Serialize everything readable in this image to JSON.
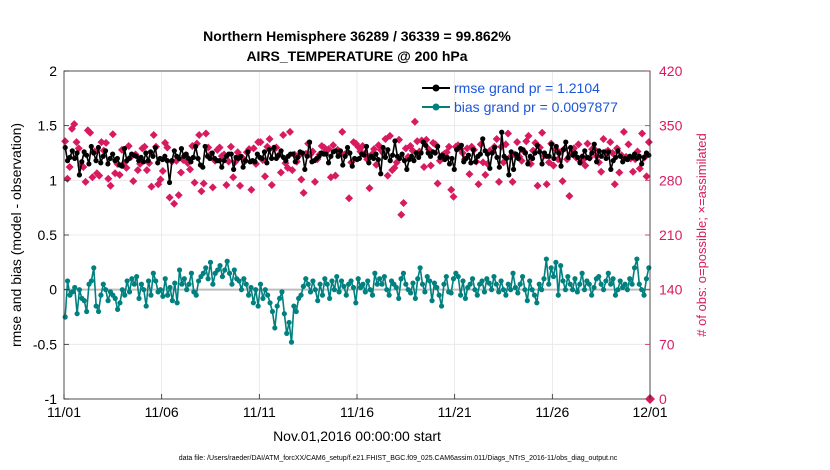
{
  "chart_data": {
    "type": "line",
    "title_line1": "Northern Hemisphere 36289 / 36339 = 99.862%",
    "title_line2": "AIRS_TEMPERATURE @ 200 hPa",
    "xlabel": "Nov.01,2016 00:00:00 start",
    "ylabel": "rmse and bias (model - observation)",
    "ylabel_right": "# of obs: o=possible; ×=assimilated",
    "xlim": [
      0,
      30
    ],
    "ylim": [
      -1,
      2
    ],
    "ylim_right": [
      0,
      420
    ],
    "x_ticks": [
      0,
      5,
      10,
      15,
      20,
      25,
      30
    ],
    "x_tick_labels": [
      "11/01",
      "11/06",
      "11/11",
      "11/16",
      "11/21",
      "11/26",
      "12/01"
    ],
    "y_ticks": [
      -1,
      -0.5,
      0,
      0.5,
      1,
      1.5,
      2
    ],
    "y_tick_labels": [
      "-1",
      "-0.5",
      "0",
      "0.5",
      "1",
      "1.5",
      "2"
    ],
    "y_ticks_right": [
      0,
      70,
      140,
      210,
      280,
      350,
      420
    ],
    "y_tick_labels_right": [
      "0",
      "70",
      "140",
      "210",
      "280",
      "350",
      "420"
    ],
    "grid": true,
    "legend_position": "top-right",
    "series": [
      {
        "name": "rmse grand pr = 1.2104",
        "color": "#000000",
        "y_axis": "left",
        "values": [
          1.3,
          1.18,
          1.21,
          1.27,
          1.2,
          1.25,
          1.05,
          1.17,
          1.26,
          1.23,
          1.15,
          1.31,
          1.25,
          1.18,
          1.3,
          1.16,
          1.22,
          1.27,
          1.15,
          1.2,
          1.24,
          1.18,
          1.2,
          1.14,
          1.13,
          1.29,
          1.18,
          1.2,
          1.24,
          1.23,
          1.22,
          1.18,
          1.21,
          1.17,
          1.25,
          1.18,
          1.26,
          1.22,
          1.3,
          1.16,
          1.2,
          1.19,
          1.22,
          1.18,
          0.98,
          1.18,
          1.27,
          1.22,
          1.2,
          1.29,
          1.22,
          1.24,
          1.2,
          1.17,
          1.21,
          1.31,
          1.2,
          1.14,
          1.12,
          1.31,
          1.22,
          1.2,
          1.25,
          1.2,
          1.18,
          1.18,
          1.12,
          1.18,
          1.22,
          1.24,
          1.24,
          1.1,
          1.21,
          1.2,
          1.22,
          1.12,
          1.18,
          1.26,
          1.17,
          1.18,
          1.17,
          1.24,
          1.21,
          1.2,
          1.26,
          1.16,
          1.28,
          1.2,
          1.3,
          1.2,
          1.23,
          1.27,
          1.21,
          1.18,
          1.22,
          1.24,
          1.24,
          1.17,
          1.21,
          1.26,
          1.25,
          1.1,
          1.22,
          1.35,
          1.17,
          1.18,
          1.2,
          1.22,
          1.25,
          1.24,
          1.24,
          1.16,
          1.22,
          1.26,
          1.27,
          1.22,
          1.27,
          1.14,
          1.22,
          1.3,
          1.25,
          1.13,
          1.2,
          1.19,
          1.2,
          1.24,
          1.23,
          1.31,
          1.16,
          1.22,
          1.2,
          1.24,
          1.19,
          1.06,
          1.3,
          1.21,
          1.28,
          1.18,
          1.23,
          1.36,
          1.22,
          1.2,
          1.24,
          1.18,
          1.1,
          1.19,
          1.22,
          1.18,
          1.25,
          1.21,
          1.25,
          1.35,
          1.32,
          1.25,
          1.22,
          1.26,
          1.25,
          1.31,
          1.21,
          1.23,
          1.19,
          1.21,
          1.15,
          1.2,
          1.1,
          1.28,
          1.3,
          1.32,
          1.17,
          1.2,
          1.23,
          1.16,
          1.28,
          1.17,
          1.22,
          1.24,
          1.38,
          1.27,
          1.24,
          1.11,
          1.25,
          1.3,
          1.21,
          1.12,
          1.44,
          1.22,
          1.2,
          1.05,
          1.26,
          1.1,
          1.24,
          1.2,
          1.29,
          1.28,
          1.25,
          1.15,
          1.22,
          1.2,
          1.25,
          1.32,
          1.26,
          1.15,
          1.25,
          1.22,
          1.22,
          1.33,
          1.2,
          1.31,
          1.25,
          1.13,
          1.28,
          1.35,
          1.21,
          1.3,
          1.23,
          1.25,
          1.21,
          1.16,
          1.22,
          1.27,
          1.21,
          1.2,
          1.25,
          1.33,
          1.17,
          1.27,
          1.22,
          1.26,
          1.2,
          1.26,
          1.1,
          1.18,
          1.21,
          1.27,
          1.22,
          1.17,
          1.2,
          1.19,
          1.22,
          1.21,
          1.24,
          1.2,
          1.22,
          1.15,
          1.21,
          1.25,
          1.23
        ]
      },
      {
        "name": "bias grand pr = 0.0097877",
        "color": "#00807f",
        "y_axis": "left",
        "values": [
          -0.25,
          0.08,
          -0.05,
          -0.02,
          0.02,
          -0.22,
          0.0,
          -0.08,
          -0.1,
          -0.2,
          0.05,
          0.08,
          0.2,
          -0.15,
          -0.2,
          -0.05,
          0.05,
          0.0,
          -0.1,
          -0.02,
          -0.05,
          -0.08,
          -0.18,
          -0.12,
          0.0,
          -0.05,
          0.08,
          -0.02,
          0.1,
          0.05,
          0.12,
          -0.08,
          0.05,
          0.0,
          -0.15,
          0.08,
          -0.05,
          0.15,
          0.08,
          -0.02,
          0.0,
          -0.06,
          0.1,
          -0.05,
          0.02,
          -0.1,
          0.06,
          -0.12,
          0.18,
          0.05,
          0.1,
          0.0,
          0.05,
          0.15,
          -0.02,
          -0.05,
          0.08,
          0.12,
          0.15,
          0.2,
          0.1,
          0.25,
          0.05,
          0.15,
          0.18,
          0.22,
          0.12,
          0.18,
          0.26,
          0.15,
          0.05,
          0.18,
          0.1,
          0.08,
          0.0,
          0.1,
          0.05,
          -0.05,
          0.02,
          -0.12,
          0.0,
          -0.15,
          0.05,
          -0.08,
          0.0,
          -0.05,
          -0.12,
          -0.2,
          -0.35,
          -0.15,
          -0.08,
          -0.02,
          -0.22,
          -0.4,
          -0.3,
          -0.48,
          -0.15,
          -0.2,
          -0.08,
          -0.05,
          0.03,
          0.1,
          0.05,
          -0.02,
          0.08,
          0.0,
          -0.1,
          0.05,
          -0.05,
          0.1,
          0.05,
          -0.08,
          0.08,
          0.0,
          0.12,
          -0.02,
          0.08,
          0.03,
          -0.05,
          0.05,
          0.08,
          0.02,
          -0.12,
          0.1,
          0.02,
          0.05,
          -0.02,
          0.08,
          0.0,
          -0.05,
          0.15,
          0.05,
          0.1,
          0.05,
          0.12,
          0.0,
          -0.05,
          0.08,
          0.05,
          0.02,
          -0.08,
          0.1,
          0.15,
          0.05,
          0.0,
          -0.03,
          0.06,
          -0.08,
          0.1,
          0.2,
          0.05,
          -0.02,
          0.12,
          0.08,
          -0.1,
          0.06,
          0.02,
          -0.05,
          -0.15,
          0.05,
          0.12,
          -0.02,
          -0.03,
          0.1,
          0.15,
          0.12,
          -0.05,
          0.08,
          -0.08,
          0.02,
          0.05,
          0.1,
          0.0,
          -0.05,
          0.05,
          0.08,
          -0.02,
          0.1,
          0.06,
          0.0,
          0.12,
          0.05,
          -0.02,
          0.08,
          0.0,
          -0.05,
          0.05,
          0.0,
          0.15,
          0.02,
          -0.03,
          0.05,
          0.12,
          0.0,
          -0.1,
          0.08,
          0.0,
          -0.05,
          -0.12,
          0.05,
          0.0,
          0.1,
          0.28,
          0.05,
          0.2,
          0.12,
          0.25,
          -0.05,
          0.22,
          0.08,
          0.0,
          0.12,
          0.05,
          0.0,
          0.1,
          -0.02,
          0.05,
          0.15,
          0.0,
          0.08,
          0.05,
          -0.05,
          0.02,
          0.1,
          0.12,
          0.05,
          0.0,
          0.08,
          0.15,
          0.05,
          0.1,
          -0.05,
          0.0,
          0.08,
          0.02,
          0.05,
          0.0,
          0.1,
          0.05,
          0.2,
          0.28,
          0.05,
          0.0,
          -0.05,
          0.1,
          0.2
        ]
      }
    ],
    "obs_possible_values": [
      330,
      282,
      297,
      346,
      352,
      329,
      321,
      299,
      297,
      278,
      344,
      341,
      284,
      317,
      289,
      286,
      329,
      318,
      328,
      282,
      273,
      339,
      289,
      301,
      287,
      319,
      302,
      296,
      324,
      310,
      279,
      313,
      293,
      301,
      321,
      323,
      293,
      302,
      272,
      338,
      323,
      275,
      281,
      292,
      328,
      322,
      258,
      304,
      250,
      305,
      261,
      290,
      306,
      312,
      302,
      294,
      324,
      277,
      327,
      338,
      266,
      276,
      340,
      322,
      313,
      271,
      305,
      319,
      322,
      311,
      313,
      274,
      304,
      323,
      284,
      304,
      316,
      273,
      309,
      304,
      316,
      320,
      268,
      321,
      301,
      329,
      329,
      306,
      285,
      323,
      333,
      274,
      321,
      322,
      312,
      290,
      338,
      302,
      296,
      342,
      293,
      313,
      304,
      312,
      281,
      264,
      314,
      327,
      313,
      317,
      278,
      307,
      313,
      324,
      322,
      318,
      320,
      284,
      325,
      286,
      319,
      316,
      342,
      313,
      315,
      257,
      303,
      329,
      327,
      323,
      317,
      324,
      314,
      307,
      270,
      313,
      320,
      300,
      325,
      319,
      315,
      333,
      286,
      337,
      293,
      296,
      303,
      332,
      236,
      251,
      321,
      310,
      324,
      318,
      355,
      330,
      317,
      331,
      297,
      332,
      320,
      299,
      328,
      326,
      276,
      305,
      312,
      314,
      316,
      323,
      268,
      259,
      323,
      325,
      320,
      315,
      307,
      321,
      288,
      323,
      319,
      304,
      275,
      326,
      303,
      287,
      301,
      318,
      316,
      323,
      333,
      278,
      323,
      303,
      326,
      340,
      310,
      278,
      313,
      329,
      310,
      305,
      317,
      330,
      337,
      301,
      318,
      328,
      273,
      322,
      341,
      312,
      275,
      303,
      327,
      299,
      320,
      307,
      316,
      279,
      321,
      307,
      260,
      315,
      321,
      309,
      326,
      304,
      306,
      299,
      327,
      309,
      320,
      320,
      311,
      303,
      291,
      333,
      316,
      318,
      329,
      315,
      275,
      321,
      290,
      312,
      342,
      310,
      326,
      308,
      291,
      307,
      317,
      295,
      340,
      309,
      285,
      329
    ]
  },
  "legend": {
    "rmse_label": "rmse grand pr = 1.2104",
    "bias_label": "bias grand pr = 0.0097877"
  },
  "footer_text": "data file: /Users/raeder/DAI/ATM_forcXX/CAM6_setup/f.e21.FHIST_BGC.f09_025.CAM6assim.011/Diags_NTrS_2016-11/obs_diag_output.nc",
  "colors": {
    "rmse": "#000000",
    "bias": "#00807f",
    "obs": "#d81b60",
    "legend_text": "#1a56db",
    "grid": "#e6e6e6",
    "zero_line": "#bdbdbd"
  }
}
